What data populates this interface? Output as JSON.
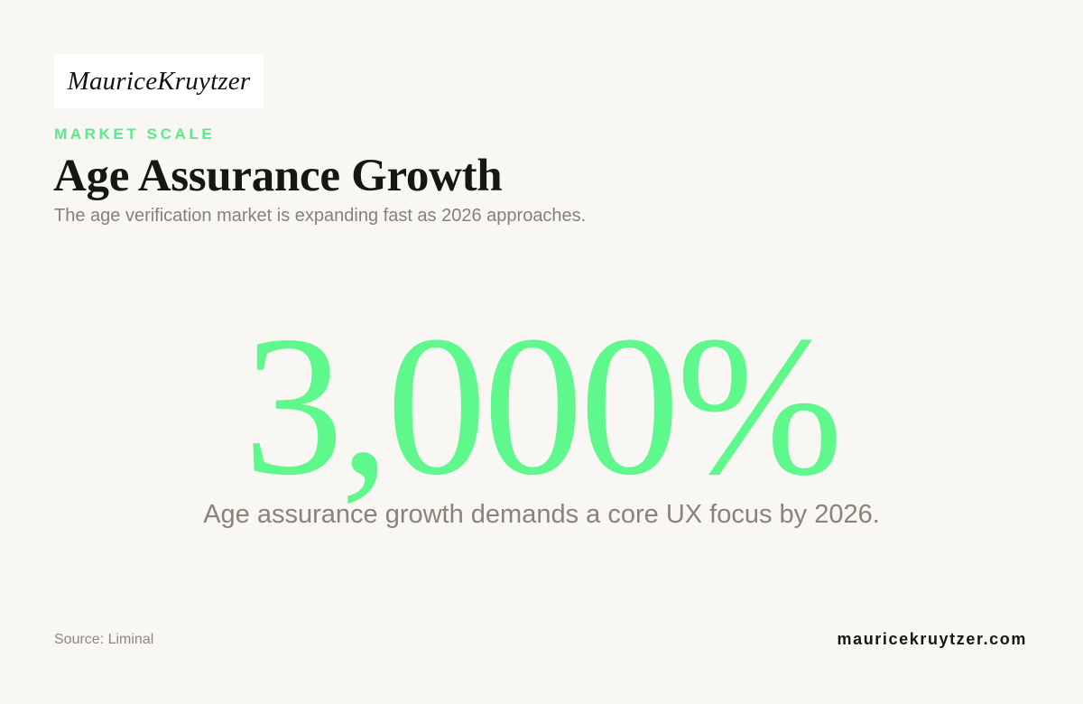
{
  "brand": {
    "logo_text": "MauriceKruytzer"
  },
  "header": {
    "eyebrow": "MARKET SCALE",
    "title": "Age Assurance Growth",
    "subtitle": "The age verification market is expanding fast as 2026 approaches."
  },
  "stat": {
    "value": "3,000%",
    "caption": "Age assurance growth demands a core UX focus by 2026."
  },
  "footer": {
    "source": "Source: Liminal",
    "website": "mauricekruytzer.com"
  },
  "colors": {
    "background": "#f8f7f3",
    "accent": "#5ef88c",
    "title": "#161614",
    "muted": "#86807a"
  }
}
